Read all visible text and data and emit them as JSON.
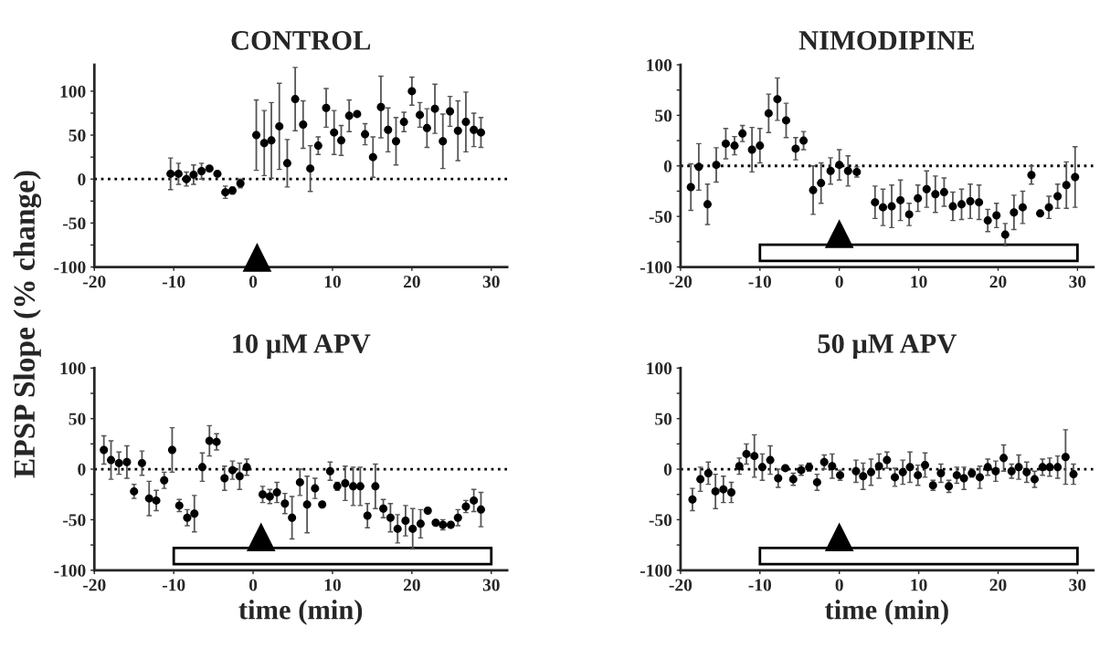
{
  "chart_data": [
    {
      "type": "scatter",
      "title": "CONTROL",
      "ylabel": "EPSP Slope (% change)",
      "marker": "circle",
      "xlim": [
        -20,
        32
      ],
      "xticks": [
        -20,
        -10,
        0,
        10,
        20,
        30
      ],
      "ylim": [
        -100,
        130
      ],
      "yticks": [
        -100,
        {
          "value": -75,
          "label": null
        },
        -50,
        {
          "value": -25,
          "label": null
        },
        0,
        {
          "value": 25,
          "label": null
        },
        50,
        {
          "value": 75,
          "label": null
        },
        100
      ],
      "ref_lines": [
        {
          "axis": "y",
          "value": 0,
          "line_style": "dotted",
          "color": "#000000"
        }
      ],
      "series": [
        {
          "color": "#000000",
          "marker": "triangle",
          "x": [
            0.5
          ],
          "values": [
            -89
          ]
        },
        {
          "color": "#000000",
          "x": [
            -10.4,
            -9.4,
            -8.4,
            -7.5,
            -6.5,
            -5.5,
            -4.5,
            -3.5,
            -2.6,
            -1.6,
            0.4,
            1.4,
            2.3,
            3.3,
            4.3,
            5.3,
            6.3,
            7.2,
            8.2,
            9.2,
            10.2,
            11.1,
            12.1,
            13.1,
            14.1,
            15.1,
            16.1,
            17.0,
            18.0,
            19.0,
            20.0,
            21.0,
            21.9,
            22.9,
            23.9,
            24.8,
            25.8,
            26.8,
            27.8,
            28.7
          ],
          "values": [
            6,
            6,
            0,
            5,
            9,
            12,
            6,
            -15,
            -13,
            -5,
            50,
            41,
            44,
            60,
            18,
            91,
            62,
            12,
            38,
            81,
            53,
            44,
            72,
            74,
            51,
            25,
            82,
            56,
            43,
            65,
            100,
            73,
            58,
            80,
            43,
            77,
            55,
            65,
            56,
            53
          ],
          "errors": [
            18,
            12,
            8,
            11,
            9,
            3,
            null,
            7,
            4,
            5,
            40,
            37,
            43,
            49,
            27,
            36,
            27,
            26,
            10,
            22,
            25,
            17,
            18,
            null,
            12,
            23,
            35,
            25,
            27,
            11,
            16,
            14,
            22,
            28,
            31,
            17,
            34,
            34,
            19,
            17
          ]
        }
      ]
    },
    {
      "type": "scatter",
      "title": "NIMODIPINE",
      "marker": "circle",
      "xlim": [
        -20,
        32
      ],
      "xticks": [
        -20,
        -10,
        0,
        10,
        20,
        30
      ],
      "ylim": [
        -100,
        100
      ],
      "yticks": [
        -100,
        {
          "value": -75,
          "label": null
        },
        -50,
        {
          "value": -25,
          "label": null
        },
        0,
        {
          "value": 25,
          "label": null
        },
        50,
        {
          "value": 75,
          "label": null
        },
        100
      ],
      "ref_lines": [
        {
          "axis": "y",
          "value": 0,
          "line_style": "dotted",
          "color": "#000000"
        }
      ],
      "bands": [
        {
          "axis": "x",
          "from": -10,
          "to": 30,
          "color": "#ffffff"
        }
      ],
      "series": [
        {
          "color": "#000000",
          "marker": "triangle",
          "x": [
            0
          ],
          "values": [
            -67
          ]
        },
        {
          "color": "#000000",
          "x": [
            -18.7,
            -17.7,
            -16.6,
            -15.5,
            -14.3,
            -13.2,
            -12.2,
            -11.0,
            -10.0,
            -8.9,
            -7.8,
            -6.7,
            -5.5,
            -4.5,
            -3.3,
            -2.3,
            -1.1,
            0,
            1.1,
            2.2,
            4.5,
            5.5,
            6.6,
            7.7,
            8.8,
            9.9,
            11.0,
            12.1,
            13.2,
            14.3,
            15.4,
            16.5,
            17.6,
            18.7,
            19.8,
            20.9,
            22.0,
            23.1,
            24.2,
            25.3,
            26.4,
            27.5,
            28.6,
            29.7
          ],
          "values": [
            -21,
            -1,
            -38,
            1,
            22,
            20,
            32,
            16,
            20,
            52,
            66,
            45,
            17,
            25,
            -24,
            -17,
            -5,
            1,
            -5,
            -6,
            -36,
            -41,
            -40,
            -34,
            -48,
            -32,
            -23,
            -28,
            -26,
            -40,
            -38,
            -35,
            -36,
            -54,
            -49,
            -68,
            -46,
            -41,
            -9,
            -47,
            -41,
            -30,
            -19,
            -11
          ],
          "errors": [
            23,
            23,
            20,
            17,
            15,
            9,
            8,
            22,
            17,
            19,
            21,
            17,
            11,
            9,
            24,
            20,
            13,
            15,
            15,
            5,
            16,
            18,
            21,
            20,
            11,
            13,
            18,
            18,
            14,
            14,
            15,
            17,
            17,
            11,
            12,
            11,
            17,
            16,
            9,
            null,
            11,
            12,
            23,
            30
          ]
        }
      ]
    },
    {
      "type": "scatter",
      "title": "10 μM APV",
      "xlabel": "time (min)",
      "marker": "circle",
      "xlim": [
        -20,
        32
      ],
      "xticks": [
        -20,
        -10,
        0,
        10,
        20,
        30
      ],
      "ylim": [
        -100,
        100
      ],
      "yticks": [
        -100,
        {
          "value": -75,
          "label": null
        },
        -50,
        {
          "value": -25,
          "label": null
        },
        0,
        {
          "value": 25,
          "label": null
        },
        50,
        {
          "value": 75,
          "label": null
        },
        100
      ],
      "ref_lines": [
        {
          "axis": "y",
          "value": 0,
          "line_style": "dotted",
          "color": "#000000"
        }
      ],
      "bands": [
        {
          "axis": "x",
          "from": -10,
          "to": 30,
          "color": "#ffffff"
        }
      ],
      "series": [
        {
          "color": "#000000",
          "marker": "triangle",
          "x": [
            1
          ],
          "values": [
            -67
          ]
        },
        {
          "color": "#000000",
          "x": [
            -18.8,
            -17.9,
            -16.9,
            -15.9,
            -15.0,
            -14.0,
            -13.1,
            -12.2,
            -11.2,
            -10.2,
            -9.3,
            -8.3,
            -7.4,
            -6.4,
            -5.5,
            -4.6,
            -3.6,
            -2.6,
            -1.7,
            -0.8,
            1.2,
            2.1,
            3.0,
            4.0,
            4.9,
            5.9,
            6.8,
            7.8,
            8.7,
            9.7,
            10.6,
            11.6,
            12.6,
            13.5,
            14.4,
            15.4,
            16.4,
            17.3,
            18.2,
            19.2,
            20.1,
            21.1,
            22.0,
            23.0,
            23.9,
            24.9,
            25.8,
            26.8,
            27.8,
            28.7
          ],
          "values": [
            19,
            9,
            6,
            7,
            -22,
            6,
            -29,
            -31,
            -11,
            19,
            -36,
            -48,
            -44,
            2,
            28,
            27,
            -9,
            -1,
            -7,
            2,
            -25,
            -27,
            -23,
            -34,
            -48,
            -13,
            -35,
            -19,
            -35,
            -2,
            -17,
            -14,
            -17,
            -17,
            -46,
            -17,
            -39,
            -48,
            -59,
            -51,
            -59,
            -54,
            -41,
            -53,
            -55,
            -55,
            -48,
            -37,
            -31,
            -40
          ],
          "errors": [
            14,
            19,
            11,
            16,
            7,
            12,
            17,
            10,
            8,
            22,
            6,
            8,
            18,
            14,
            15,
            8,
            12,
            9,
            13,
            8,
            8,
            7,
            10,
            10,
            21,
            13,
            28,
            10,
            null,
            9,
            4,
            17,
            19,
            19,
            12,
            22,
            9,
            14,
            14,
            15,
            20,
            14,
            null,
            null,
            5,
            null,
            8,
            6,
            11,
            17
          ]
        }
      ]
    },
    {
      "type": "scatter",
      "title": "50 μM APV",
      "xlabel": "time (min)",
      "marker": "circle",
      "xlim": [
        -20,
        32
      ],
      "xticks": [
        -20,
        -10,
        0,
        10,
        20,
        30
      ],
      "ylim": [
        -100,
        100
      ],
      "yticks": [
        -100,
        {
          "value": -75,
          "label": null
        },
        -50,
        {
          "value": -25,
          "label": null
        },
        0,
        {
          "value": 25,
          "label": null
        },
        50,
        {
          "value": 75,
          "label": null
        },
        100
      ],
      "ref_lines": [
        {
          "axis": "y",
          "value": 0,
          "line_style": "dotted",
          "color": "#000000"
        }
      ],
      "bands": [
        {
          "axis": "x",
          "from": -10,
          "to": 30,
          "color": "#ffffff"
        }
      ],
      "series": [
        {
          "color": "#000000",
          "marker": "triangle",
          "x": [
            0
          ],
          "values": [
            -67
          ]
        },
        {
          "color": "#000000",
          "x": [
            -18.5,
            -17.5,
            -16.5,
            -15.6,
            -14.6,
            -13.6,
            -12.6,
            -11.7,
            -10.7,
            -9.7,
            -8.7,
            -7.7,
            -6.8,
            -5.8,
            -4.8,
            -3.8,
            -2.8,
            -1.9,
            -0.9,
            0.1,
            2.1,
            3.0,
            4.0,
            5.0,
            6.0,
            7.0,
            8.0,
            8.9,
            9.9,
            10.8,
            11.8,
            12.8,
            13.8,
            14.8,
            15.7,
            16.7,
            17.7,
            18.7,
            19.7,
            20.7,
            21.7,
            22.6,
            23.6,
            24.6,
            25.6,
            26.5,
            27.5,
            28.5,
            29.5
          ],
          "values": [
            -30,
            -10,
            -4,
            -22,
            -20,
            -23,
            3,
            15,
            13,
            2,
            9,
            -9,
            1,
            -10,
            -1,
            2,
            -13,
            7,
            3,
            -6,
            -2,
            -7,
            -3,
            3,
            9,
            -8,
            -3,
            2,
            -6,
            4,
            -16,
            -4,
            -17,
            -6,
            -9,
            -4,
            -8,
            2,
            -2,
            11,
            -2,
            2,
            -3,
            -10,
            2,
            2,
            2,
            12,
            -5
          ],
          "errors": [
            11,
            12,
            11,
            17,
            13,
            10,
            8,
            10,
            21,
            13,
            14,
            9,
            null,
            6,
            5,
            4,
            8,
            7,
            12,
            5,
            11,
            13,
            13,
            12,
            8,
            9,
            12,
            15,
            10,
            12,
            5,
            9,
            6,
            8,
            11,
            4,
            11,
            8,
            10,
            13,
            7,
            12,
            10,
            8,
            8,
            9,
            11,
            27,
            10
          ]
        }
      ]
    }
  ]
}
